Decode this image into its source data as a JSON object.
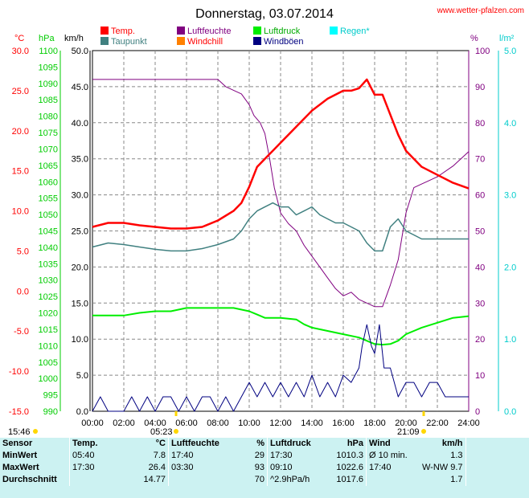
{
  "chart_data": {
    "type": "line",
    "title": "Donnerstag, 03.07.2014",
    "source": "www.wetter-pfalzen.com",
    "x_ticks": [
      "00:00",
      "02:00",
      "04:00",
      "06:00",
      "08:00",
      "10:00",
      "12:00",
      "14:00",
      "16:00",
      "18:00",
      "20:00",
      "22:00",
      "24:00"
    ],
    "x_range_hours": [
      0,
      24
    ],
    "sunrise_label": "05:23",
    "sunset_label": "21:09",
    "moon_label": "15:46",
    "axes": {
      "temp": {
        "unit": "°C",
        "color": "#ff0000",
        "range": [
          -15,
          30
        ],
        "ticks": [
          "30.0",
          "25.0",
          "20.0",
          "15.0",
          "10.0",
          "5.0",
          "0.0",
          "-5.0",
          "-10.0",
          "-15.0"
        ]
      },
      "pressure": {
        "unit": "hPa",
        "color": "#00cc00",
        "range": [
          990,
          1100
        ],
        "ticks": [
          "1100",
          "1095",
          "1090",
          "1085",
          "1080",
          "1075",
          "1070",
          "1065",
          "1060",
          "1055",
          "1050",
          "1045",
          "1040",
          "1035",
          "1030",
          "1025",
          "1020",
          "1015",
          "1010",
          "1005",
          "1000",
          "995",
          "990"
        ]
      },
      "wind": {
        "unit": "km/h",
        "color": "#000000",
        "range": [
          0,
          50
        ],
        "ticks": [
          "50.0",
          "45.0",
          "40.0",
          "35.0",
          "30.0",
          "25.0",
          "20.0",
          "15.0",
          "10.0",
          "5.0",
          "0.0"
        ]
      },
      "humidity": {
        "unit": "%",
        "color": "#800080",
        "range": [
          0,
          100
        ],
        "ticks": [
          "100",
          "90",
          "80",
          "70",
          "60",
          "50",
          "40",
          "30",
          "20",
          "10",
          "0"
        ]
      },
      "rain": {
        "unit": "l/m²",
        "color": "#00cccc",
        "range": [
          0,
          5
        ],
        "ticks": [
          "5.0",
          "4.0",
          "3.0",
          "2.0",
          "1.0",
          "0.0"
        ]
      }
    },
    "legend": [
      {
        "name": "Temp.",
        "color": "#ff0000"
      },
      {
        "name": "Luftfeuchte",
        "color": "#800080"
      },
      {
        "name": "Luftdruck",
        "color": "#00ee00"
      },
      {
        "name": "Regen*",
        "color": "#00ffff"
      },
      {
        "name": "Taupunkt",
        "color": "#408080"
      },
      {
        "name": "Windchill",
        "color": "#ff8000"
      },
      {
        "name": "Windböen",
        "color": "#000080"
      }
    ],
    "series": [
      {
        "name": "Temp.",
        "axis": "temp",
        "color": "#ff0000",
        "width": 2.5,
        "x": [
          0,
          1,
          2,
          3,
          4,
          5,
          6,
          7,
          8,
          9,
          9.5,
          10,
          10.5,
          11,
          11.5,
          12,
          13,
          14,
          15,
          16,
          16.5,
          17,
          17.5,
          18,
          18.5,
          19,
          19.5,
          20,
          21,
          22,
          23,
          24
        ],
        "y": [
          8.0,
          8.5,
          8.5,
          8.2,
          8.0,
          7.8,
          7.8,
          8.0,
          8.8,
          10.0,
          11.0,
          13.0,
          15.5,
          16.5,
          17.5,
          18.5,
          20.5,
          22.5,
          24.0,
          25.0,
          25.0,
          25.3,
          26.4,
          24.5,
          24.5,
          22.0,
          19.5,
          17.5,
          15.5,
          14.5,
          13.5,
          12.8
        ]
      },
      {
        "name": "Taupunkt",
        "axis": "temp",
        "color": "#408080",
        "width": 1.5,
        "x": [
          0,
          1,
          2,
          3,
          4,
          5,
          6,
          7,
          8,
          9,
          9.5,
          10,
          10.5,
          11,
          11.5,
          12,
          12.5,
          13,
          13.5,
          14,
          14.5,
          15,
          15.5,
          16,
          16.5,
          17,
          17.5,
          18,
          18.5,
          19,
          19.5,
          20,
          20.5,
          21,
          22,
          23,
          24
        ],
        "y": [
          5.5,
          6.0,
          5.8,
          5.5,
          5.2,
          5.0,
          5.0,
          5.3,
          5.8,
          6.5,
          7.5,
          9.0,
          10.0,
          10.5,
          11.0,
          10.5,
          10.5,
          9.5,
          10.0,
          10.5,
          9.5,
          9.0,
          8.5,
          8.5,
          8.0,
          7.5,
          6.0,
          5.0,
          5.0,
          8.0,
          9.0,
          7.5,
          7.0,
          6.5,
          6.5,
          6.5,
          6.5
        ]
      },
      {
        "name": "Luftfeuchte",
        "axis": "humidity",
        "color": "#800080",
        "width": 1,
        "x": [
          0,
          1,
          2,
          3,
          4,
          5,
          6,
          7,
          8,
          8.5,
          9,
          9.5,
          10,
          10.3,
          10.7,
          11,
          11.3,
          11.6,
          12,
          12.5,
          13,
          13.5,
          14,
          14.5,
          15,
          15.5,
          16,
          16.5,
          17,
          17.5,
          18,
          18.5,
          19,
          19.5,
          20,
          20.5,
          21,
          21.5,
          22,
          23,
          24
        ],
        "y": [
          92,
          92,
          92,
          92,
          92,
          92,
          92,
          92,
          92,
          90,
          89,
          88,
          85,
          82,
          80,
          77,
          70,
          62,
          55,
          52,
          50,
          46,
          43,
          40,
          37,
          34,
          32,
          33,
          31,
          30,
          29,
          29,
          35,
          42,
          55,
          62,
          63,
          64,
          65,
          68,
          72
        ]
      },
      {
        "name": "Luftdruck",
        "axis": "pressure",
        "color": "#00ee00",
        "width": 2,
        "x": [
          0,
          1,
          2,
          3,
          4,
          5,
          6,
          7,
          8,
          9,
          10,
          10.5,
          11,
          12,
          13,
          13.5,
          14,
          15,
          16,
          17,
          18,
          18.5,
          19,
          19.5,
          20,
          20.5,
          21,
          22,
          23,
          24
        ],
        "y": [
          1019.2,
          1019.2,
          1019.2,
          1020.0,
          1020.5,
          1020.5,
          1021.5,
          1021.5,
          1021.5,
          1021.5,
          1020.5,
          1019.5,
          1018.5,
          1018.5,
          1018.0,
          1016.5,
          1015.5,
          1014.5,
          1013.5,
          1012.5,
          1010.5,
          1010.3,
          1010.5,
          1011.5,
          1013.5,
          1014.5,
          1015.5,
          1017.0,
          1018.5,
          1019.0
        ]
      },
      {
        "name": "Windböen",
        "axis": "wind",
        "color": "#000080",
        "width": 1,
        "x": [
          0,
          0.5,
          1,
          1.5,
          2,
          2.5,
          3,
          3.5,
          4,
          4.5,
          5,
          5.5,
          6,
          6.5,
          7,
          7.5,
          8,
          8.5,
          9,
          9.5,
          10,
          10.5,
          11,
          11.5,
          12,
          12.5,
          13,
          13.5,
          14,
          14.5,
          15,
          15.5,
          16,
          16.5,
          17,
          17.2,
          17.5,
          17.8,
          18,
          18.3,
          18.6,
          19,
          19.5,
          20,
          20.5,
          21,
          21.5,
          22,
          22.5,
          23,
          23.5,
          24
        ],
        "y": [
          0,
          2,
          0,
          0,
          0,
          2,
          0,
          2,
          0,
          2,
          2,
          0,
          2,
          0,
          2,
          2,
          0,
          2,
          0,
          2,
          4,
          2,
          4,
          2,
          4,
          2,
          4,
          2,
          5,
          2,
          4,
          2,
          5,
          4,
          6,
          9,
          12,
          9,
          8,
          12,
          6,
          6,
          2,
          4,
          4,
          2,
          4,
          4,
          2,
          2,
          2,
          2
        ]
      }
    ]
  },
  "stats": {
    "headers": {
      "sensor": "Sensor",
      "temp": "Temp.",
      "temp_unit": "°C",
      "hum": "Luftfeuchte",
      "hum_unit": "%",
      "press": "Luftdruck",
      "press_unit": "hPa",
      "wind": "Wind",
      "wind_unit": "km/h"
    },
    "rows": [
      {
        "label": "MinWert",
        "t_time": "05:40",
        "t_val": "7.8",
        "h_time": "17:40",
        "h_val": "29",
        "p_time": "17:30",
        "p_val": "1010.3",
        "w_time": "Ø 10 min.",
        "w_val": "1.3"
      },
      {
        "label": "MaxWert",
        "t_time": "17:30",
        "t_val": "26.4",
        "h_time": "03:30",
        "h_val": "93",
        "p_time": "09:10",
        "p_val": "1022.6",
        "w_time": "17:40",
        "w_val": "W-NW 9.7"
      },
      {
        "label": "Durchschnitt",
        "t_time": "",
        "t_val": "14.77",
        "h_time": "",
        "h_val": "70",
        "p_time": "^2.9hPa/h",
        "p_val": "1017.6",
        "w_time": "",
        "w_val": "1.7"
      }
    ]
  }
}
